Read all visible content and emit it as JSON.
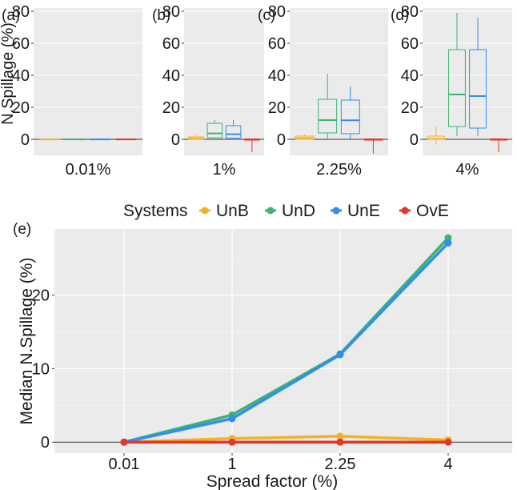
{
  "colors": {
    "UnB": "#f0b323",
    "UnD": "#3cb371",
    "UnE": "#2f8ff0",
    "OvE": "#e8352a",
    "panel_bg": "#ebebeb",
    "grid": "#ffffff",
    "zero_line": "#333333"
  },
  "legend": {
    "title": "Systems",
    "placement": "top",
    "items": [
      {
        "key": "UnB",
        "label": "UnB"
      },
      {
        "key": "UnD",
        "label": "UnD"
      },
      {
        "key": "UnE",
        "label": "UnE"
      },
      {
        "key": "OvE",
        "label": "OvE"
      }
    ]
  },
  "chart_data": [
    {
      "type": "box",
      "panel_label": "(a)",
      "xlabel": "0.01%",
      "ylabel": "N.Spillage (%)",
      "ylim": [
        -10,
        82
      ],
      "yticks": [
        0,
        20,
        40,
        60,
        80
      ],
      "boxes": [
        {
          "system": "UnB",
          "min": 0,
          "q1": 0,
          "median": 0,
          "q3": 0,
          "max": 0
        },
        {
          "system": "UnD",
          "min": 0,
          "q1": 0,
          "median": 0,
          "q3": 0,
          "max": 0
        },
        {
          "system": "UnE",
          "min": 0,
          "q1": 0,
          "median": 0,
          "q3": 0,
          "max": 0
        },
        {
          "system": "OvE",
          "min": 0,
          "q1": 0,
          "median": 0,
          "q3": 0,
          "max": 0
        }
      ]
    },
    {
      "type": "box",
      "panel_label": "(b)",
      "xlabel": "1%",
      "ylim": [
        -10,
        82
      ],
      "yticks": [
        0,
        20,
        40,
        60,
        80
      ],
      "boxes": [
        {
          "system": "UnB",
          "min": 0,
          "q1": 0,
          "median": 0.5,
          "q3": 1.5,
          "max": 3
        },
        {
          "system": "UnD",
          "min": 0,
          "q1": 1,
          "median": 3.7,
          "q3": 10,
          "max": 12
        },
        {
          "system": "UnE",
          "min": 0,
          "q1": 0.8,
          "median": 3.2,
          "q3": 8.5,
          "max": 12
        },
        {
          "system": "OvE",
          "min": -8,
          "q1": -0.5,
          "median": 0,
          "q3": 0,
          "max": 0
        }
      ]
    },
    {
      "type": "box",
      "panel_label": "(c)",
      "xlabel": "2.25%",
      "ylim": [
        -10,
        82
      ],
      "yticks": [
        0,
        20,
        40,
        60,
        80
      ],
      "boxes": [
        {
          "system": "UnB",
          "min": 0,
          "q1": 0,
          "median": 0.8,
          "q3": 2,
          "max": 3
        },
        {
          "system": "UnD",
          "min": 0,
          "q1": 4,
          "median": 12,
          "q3": 25,
          "max": 41
        },
        {
          "system": "UnE",
          "min": 0,
          "q1": 3.5,
          "median": 11.9,
          "q3": 24.5,
          "max": 33
        },
        {
          "system": "OvE",
          "min": -9,
          "q1": -0.5,
          "median": 0,
          "q3": 0,
          "max": 0
        }
      ]
    },
    {
      "type": "box",
      "panel_label": "(d)",
      "xlabel": "4%",
      "ylim": [
        -10,
        82
      ],
      "yticks": [
        0,
        20,
        40,
        60,
        80
      ],
      "boxes": [
        {
          "system": "UnB",
          "min": -3,
          "q1": 0,
          "median": 0.3,
          "q3": 2,
          "max": 8
        },
        {
          "system": "UnD",
          "min": 2,
          "q1": 8,
          "median": 28,
          "q3": 56,
          "max": 79
        },
        {
          "system": "UnE",
          "min": 2,
          "q1": 7,
          "median": 27,
          "q3": 56,
          "max": 76
        },
        {
          "system": "OvE",
          "min": -8,
          "q1": -0.5,
          "median": 0,
          "q3": 0,
          "max": 0
        }
      ]
    },
    {
      "type": "line",
      "panel_label": "(e)",
      "xlabel": "Spread factor (%)",
      "ylabel": "Median N.Spillage (%)",
      "categories": [
        "0.01",
        "1",
        "2.25",
        "4"
      ],
      "ylim": [
        -1.5,
        29
      ],
      "yticks": [
        0,
        10,
        20
      ],
      "grid": true,
      "series": [
        {
          "name": "UnB",
          "values": [
            0,
            0.5,
            0.8,
            0.3
          ]
        },
        {
          "name": "UnD",
          "values": [
            0,
            3.7,
            12.0,
            27.8
          ]
        },
        {
          "name": "UnE",
          "values": [
            0,
            3.2,
            11.9,
            27.1
          ]
        },
        {
          "name": "OvE",
          "values": [
            0,
            0,
            0,
            0
          ]
        }
      ]
    }
  ]
}
